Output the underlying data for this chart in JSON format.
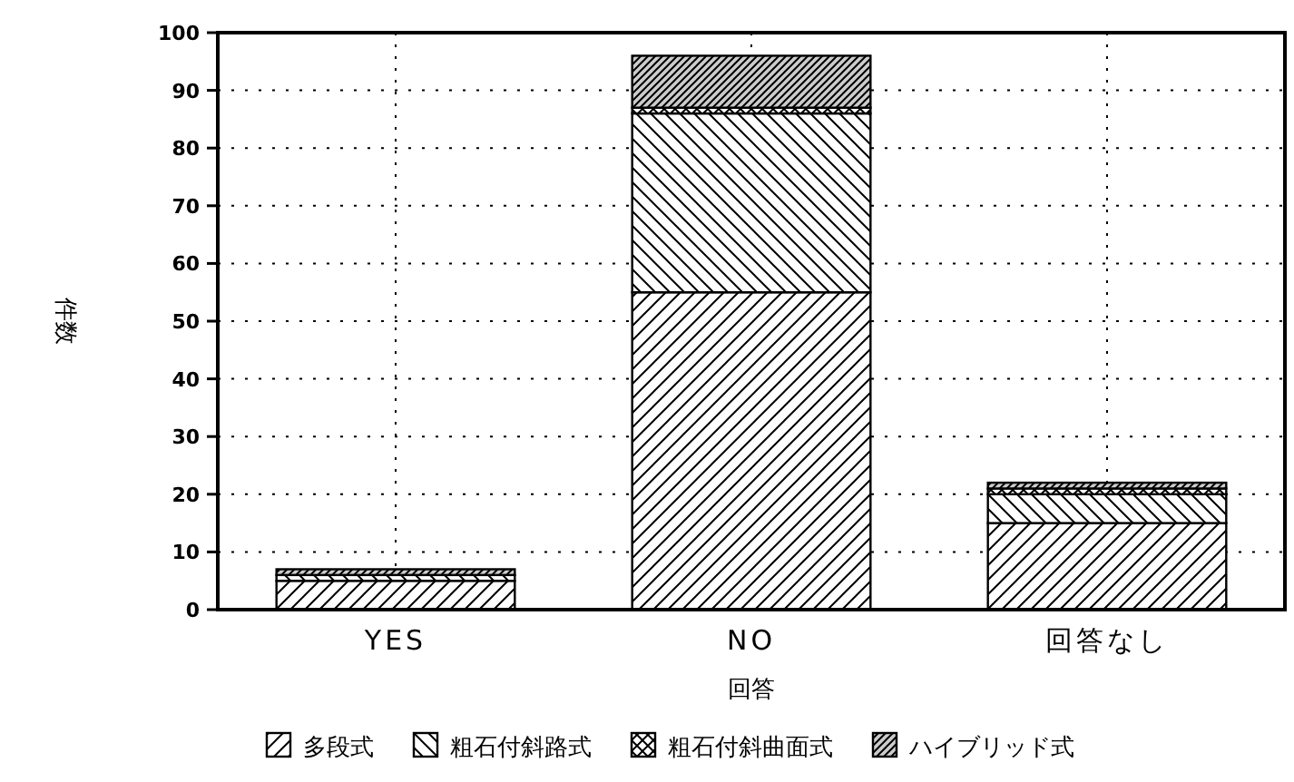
{
  "chart_data": {
    "type": "bar",
    "stacked": true,
    "xlabel": "回答",
    "ylabel": "件数",
    "categories": [
      "YES",
      "NO",
      "回答なし"
    ],
    "series": [
      {
        "name": "多段式",
        "color": "#000000",
        "values": [
          5,
          55,
          15
        ]
      },
      {
        "name": "粗石付斜路式",
        "color": "#000000",
        "values": [
          1,
          31,
          5
        ]
      },
      {
        "name": "粗石付斜曲面式",
        "color": "#000000",
        "values": [
          0,
          1,
          1
        ]
      },
      {
        "name": "ハイブリッド式",
        "color": "#000000",
        "values": [
          1,
          9,
          1
        ]
      }
    ],
    "ylim": [
      0,
      100
    ],
    "yticks": [
      0,
      10,
      20,
      30,
      40,
      50,
      60,
      70,
      80,
      90,
      100
    ],
    "grid": true,
    "legend": "bottom"
  }
}
